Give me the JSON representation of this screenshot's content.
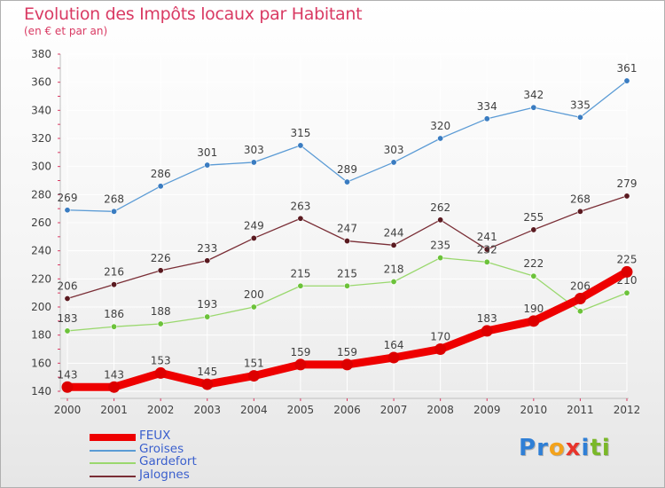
{
  "title": "Evolution des Impôts locaux par Habitant",
  "subtitle": "(en € et par an)",
  "logo": {
    "text": "Proxiti",
    "letters": [
      {
        "ch": "P",
        "color": "#2f7fd6"
      },
      {
        "ch": "r",
        "color": "#2f7fd6"
      },
      {
        "ch": "o",
        "color": "#f3a21b"
      },
      {
        "ch": "x",
        "color": "#e8352c"
      },
      {
        "ch": "i",
        "color": "#2f7fd6"
      },
      {
        "ch": "t",
        "color": "#7ab828"
      },
      {
        "ch": "i",
        "color": "#7ab828"
      }
    ]
  },
  "colors": {
    "axis": "#c0c0c0",
    "grid": "#ffffff",
    "tick_text": "#404040",
    "value_text": "#404040",
    "legend_text": "#3a5fcd",
    "title": "#d93a63"
  },
  "chart_data": {
    "type": "line",
    "x": [
      "2000",
      "2001",
      "2002",
      "2003",
      "2004",
      "2005",
      "2006",
      "2007",
      "2008",
      "2009",
      "2010",
      "2011",
      "2012"
    ],
    "ylim": [
      140,
      380
    ],
    "yticks": [
      140,
      160,
      180,
      200,
      220,
      240,
      260,
      280,
      300,
      320,
      340,
      360,
      380
    ],
    "grid": true,
    "legend_position": "bottom-left",
    "series": [
      {
        "name": "Groises",
        "color": "#5b9bd5",
        "marker": "#3a7cc1",
        "values": [
          269,
          268,
          286,
          301,
          303,
          315,
          289,
          303,
          320,
          334,
          342,
          335,
          361
        ],
        "labels": [
          "269",
          "268",
          "286",
          "301",
          "303",
          "315",
          "289",
          "303",
          "320",
          "334",
          "342",
          "335",
          "361"
        ]
      },
      {
        "name": "Jalognes",
        "color": "#7a2e36",
        "marker": "#5a1a20",
        "values": [
          206,
          216,
          226,
          233,
          249,
          263,
          247,
          244,
          262,
          241,
          255,
          268,
          279
        ],
        "labels": [
          "206",
          "216",
          "226",
          "233",
          "249",
          "263",
          "247",
          "244",
          "262",
          "241",
          "255",
          "268",
          "279"
        ]
      },
      {
        "name": "Gardefort",
        "color": "#9ad86e",
        "marker": "#6cc23a",
        "values": [
          183,
          186,
          188,
          193,
          200,
          215,
          215,
          218,
          235,
          232,
          222,
          197,
          210
        ],
        "labels": [
          "183",
          "186",
          "188",
          "193",
          "200",
          "215",
          "215",
          "218",
          "235",
          "232",
          "222",
          "",
          "210"
        ]
      },
      {
        "name": "FEUX",
        "color": "#ee0000",
        "marker": "#dd0000",
        "values": [
          143,
          143,
          153,
          145,
          151,
          159,
          159,
          164,
          170,
          183,
          190,
          206,
          225
        ],
        "labels": [
          "143",
          "143",
          "153",
          "145",
          "151",
          "159",
          "159",
          "164",
          "170",
          "183",
          "190",
          "206",
          "225"
        ]
      }
    ],
    "legend_order": [
      "FEUX",
      "Groises",
      "Gardefort",
      "Jalognes"
    ]
  }
}
